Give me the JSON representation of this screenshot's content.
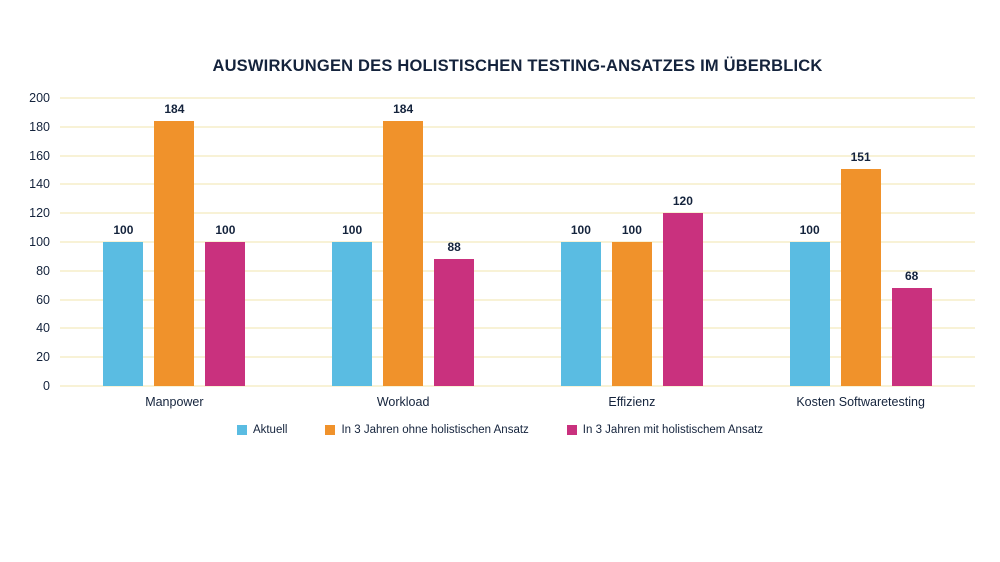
{
  "title": "AUSWIRKUNGEN DES HOLISTISCHEN TESTING-ANSATZES IM ÜBERBLICK",
  "colors": {
    "background": "#FFFFFF",
    "text": "#14233C",
    "gridline": "#F8F2D6",
    "series_blue": "#5ABCE2",
    "series_orange": "#F0922B",
    "series_magenta": "#C9317E"
  },
  "chart_data": {
    "type": "bar",
    "title": "AUSWIRKUNGEN DES HOLISTISCHEN TESTING-ANSATZES IM ÜBERBLICK",
    "categories": [
      "Manpower",
      "Workload",
      "Effizienz",
      "Kosten Softwaretesting"
    ],
    "series": [
      {
        "name": "Aktuell",
        "color": "#5ABCE2",
        "values": [
          100,
          100,
          100,
          100
        ]
      },
      {
        "name": "In 3 Jahren ohne holistischen Ansatz",
        "color": "#F0922B",
        "values": [
          184,
          184,
          100,
          151
        ]
      },
      {
        "name": "In 3 Jahren mit holistischem Ansatz",
        "color": "#C9317E",
        "values": [
          100,
          88,
          120,
          68
        ]
      }
    ],
    "xlabel": "",
    "ylabel": "",
    "ylim": [
      0,
      200
    ],
    "yticks": [
      0,
      20,
      40,
      60,
      80,
      100,
      120,
      140,
      160,
      180,
      200
    ],
    "grid": "horizontal-only",
    "legend_position": "bottom",
    "bar_value_labels": "shown above each bar"
  }
}
